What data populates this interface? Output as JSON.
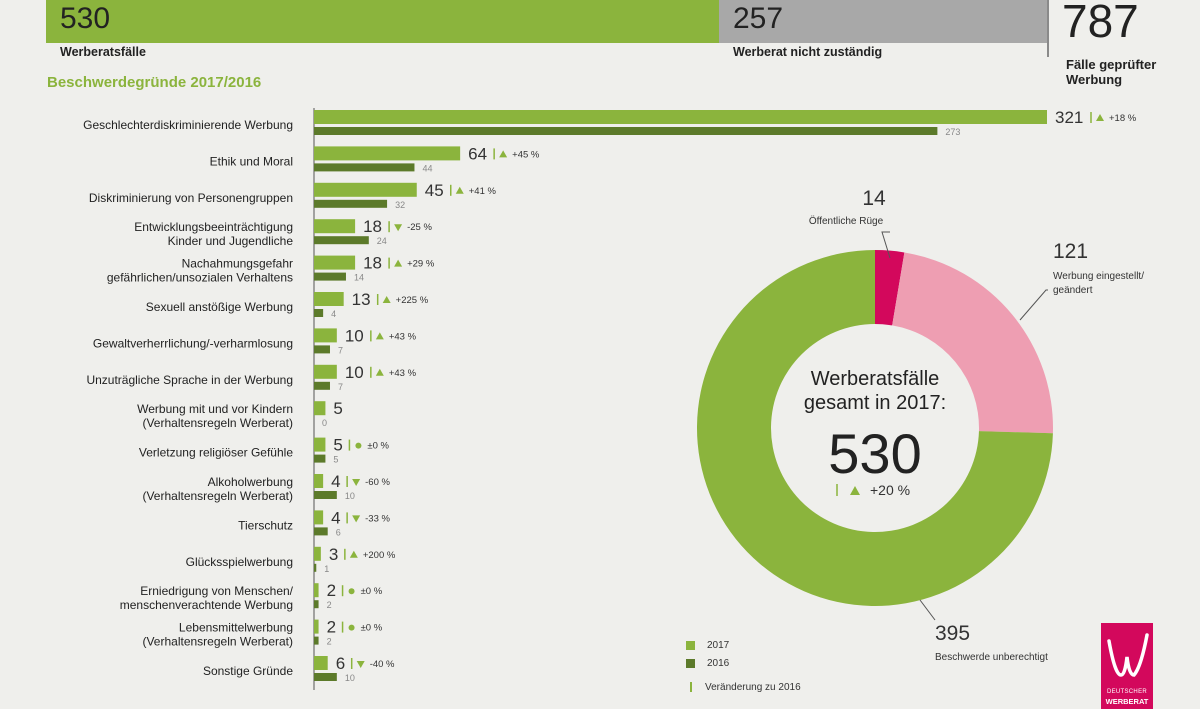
{
  "header": {
    "werberatsfaelle": {
      "value": "530",
      "label": "Werberatsfälle"
    },
    "nicht_zustaendig": {
      "value": "257",
      "label": "Werberat nicht zuständig"
    },
    "gesamt": {
      "value": "787",
      "label": "Fälle geprüfter Werbung"
    }
  },
  "colors": {
    "green2017": "#8bb43d",
    "green2016": "#5c7a2a",
    "pink": "#ee9eb2",
    "magenta": "#d3085c",
    "grey": "#a8a8a8"
  },
  "chart_data": [
    {
      "type": "bar",
      "title": "Beschwerdegründe 2017/2016",
      "xlim": [
        0,
        321
      ],
      "series": [
        {
          "name": "2017"
        },
        {
          "name": "2016"
        }
      ],
      "rows": [
        {
          "label": [
            "Geschlechterdiskriminierende Werbung"
          ],
          "v2017": 321,
          "v2016": 273,
          "change": "+18 %",
          "dir": "up"
        },
        {
          "label": [
            "Ethik und Moral"
          ],
          "v2017": 64,
          "v2016": 44,
          "change": "+45 %",
          "dir": "up"
        },
        {
          "label": [
            "Diskriminierung von Personengruppen"
          ],
          "v2017": 45,
          "v2016": 32,
          "change": "+41 %",
          "dir": "up"
        },
        {
          "label": [
            "Entwicklungsbeeinträchtigung",
            "Kinder und Jugendliche"
          ],
          "v2017": 18,
          "v2016": 24,
          "change": "-25 %",
          "dir": "down"
        },
        {
          "label": [
            "Nachahmungsgefahr",
            "gefährlichen/unsozialen Verhaltens"
          ],
          "v2017": 18,
          "v2016": 14,
          "change": "+29 %",
          "dir": "up"
        },
        {
          "label": [
            "Sexuell anstößige Werbung"
          ],
          "v2017": 13,
          "v2016": 4,
          "change": "+225 %",
          "dir": "up"
        },
        {
          "label": [
            "Gewaltverherrlichung/-verharmlosung"
          ],
          "v2017": 10,
          "v2016": 7,
          "change": "+43 %",
          "dir": "up"
        },
        {
          "label": [
            "Unzuträgliche Sprache in der Werbung"
          ],
          "v2017": 10,
          "v2016": 7,
          "change": "+43 %",
          "dir": "up"
        },
        {
          "label": [
            "Werbung mit und vor Kindern",
            "(Verhaltensregeln Werberat)"
          ],
          "v2017": 5,
          "v2016": 0,
          "change": "",
          "dir": "none"
        },
        {
          "label": [
            "Verletzung religiöser Gefühle"
          ],
          "v2017": 5,
          "v2016": 5,
          "change": "±0 %",
          "dir": "eq"
        },
        {
          "label": [
            "Alkoholwerbung",
            "(Verhaltensregeln Werberat)"
          ],
          "v2017": 4,
          "v2016": 10,
          "change": "-60 %",
          "dir": "down"
        },
        {
          "label": [
            "Tierschutz"
          ],
          "v2017": 4,
          "v2016": 6,
          "change": "-33 %",
          "dir": "down"
        },
        {
          "label": [
            "Glücksspielwerbung"
          ],
          "v2017": 3,
          "v2016": 1,
          "change": "+200 %",
          "dir": "up"
        },
        {
          "label": [
            "Erniedrigung von Menschen/",
            "menschenverachtende Werbung"
          ],
          "v2017": 2,
          "v2016": 2,
          "change": "±0 %",
          "dir": "eq"
        },
        {
          "label": [
            "Lebensmittelwerbung",
            "(Verhaltensregeln Werberat)"
          ],
          "v2017": 2,
          "v2016": 2,
          "change": "±0 %",
          "dir": "eq"
        },
        {
          "label": [
            "Sonstige Gründe"
          ],
          "v2017": 6,
          "v2016": 10,
          "change": "-40 %",
          "dir": "down"
        }
      ]
    },
    {
      "type": "pie",
      "center_title": [
        "Werberatsfälle",
        "gesamt in 2017:"
      ],
      "center_value": "530",
      "center_change": "+20 %",
      "slices": [
        {
          "label": [
            "Öffentliche Rüge"
          ],
          "value": 14,
          "color": "#d3085c"
        },
        {
          "label": [
            "Werbung eingestellt/",
            "geändert"
          ],
          "value": 121,
          "color": "#ee9eb2"
        },
        {
          "label": [
            "Beschwerde unberechtigt"
          ],
          "value": 395,
          "color": "#8bb43d"
        }
      ]
    }
  ],
  "legend": {
    "l2017": "2017",
    "l2016": "2016",
    "change": "Veränderung zu 2016"
  },
  "logo": {
    "line1": "DEUTSCHER",
    "line2": "WERBERAT"
  }
}
